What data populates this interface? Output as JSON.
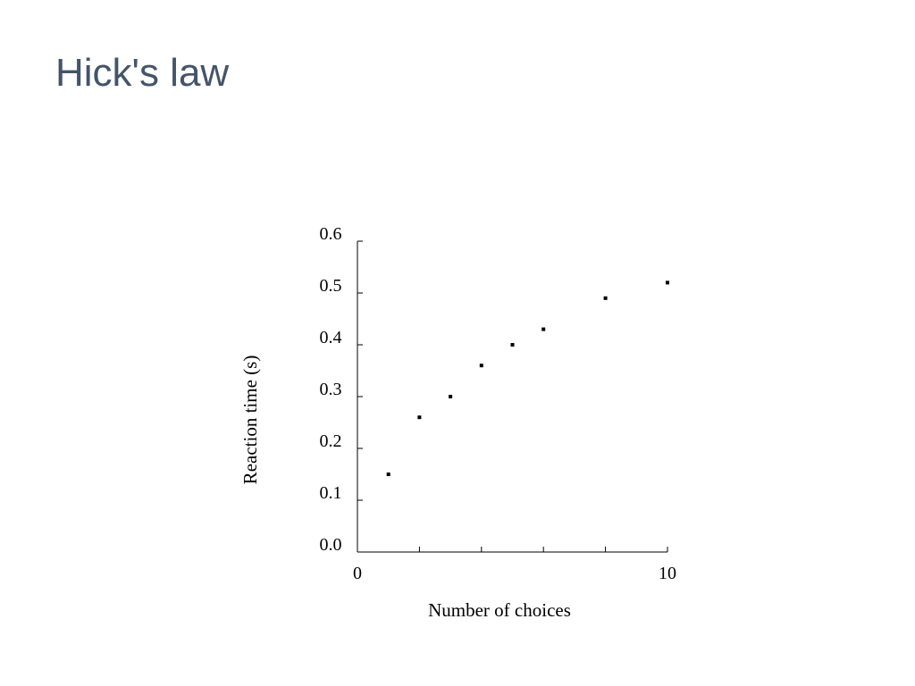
{
  "slide": {
    "title": "Hick's law"
  },
  "chart_data": {
    "type": "scatter",
    "title": "",
    "xlabel": "Number of choices",
    "ylabel": "Reaction time (s)",
    "xlim": [
      0,
      10
    ],
    "ylim": [
      0,
      0.6
    ],
    "x_tick_labels": [
      "0",
      "10"
    ],
    "y_tick_labels": [
      "0.0",
      "0.1",
      "0.2",
      "0.3",
      "0.4",
      "0.5",
      "0.6"
    ],
    "grid": false,
    "legend": "none",
    "marker_color": "#000000",
    "series": [
      {
        "x": [
          1,
          2,
          3,
          4,
          5,
          6,
          8,
          10
        ],
        "y": [
          0.15,
          0.26,
          0.3,
          0.36,
          0.4,
          0.43,
          0.49,
          0.52
        ]
      }
    ]
  }
}
